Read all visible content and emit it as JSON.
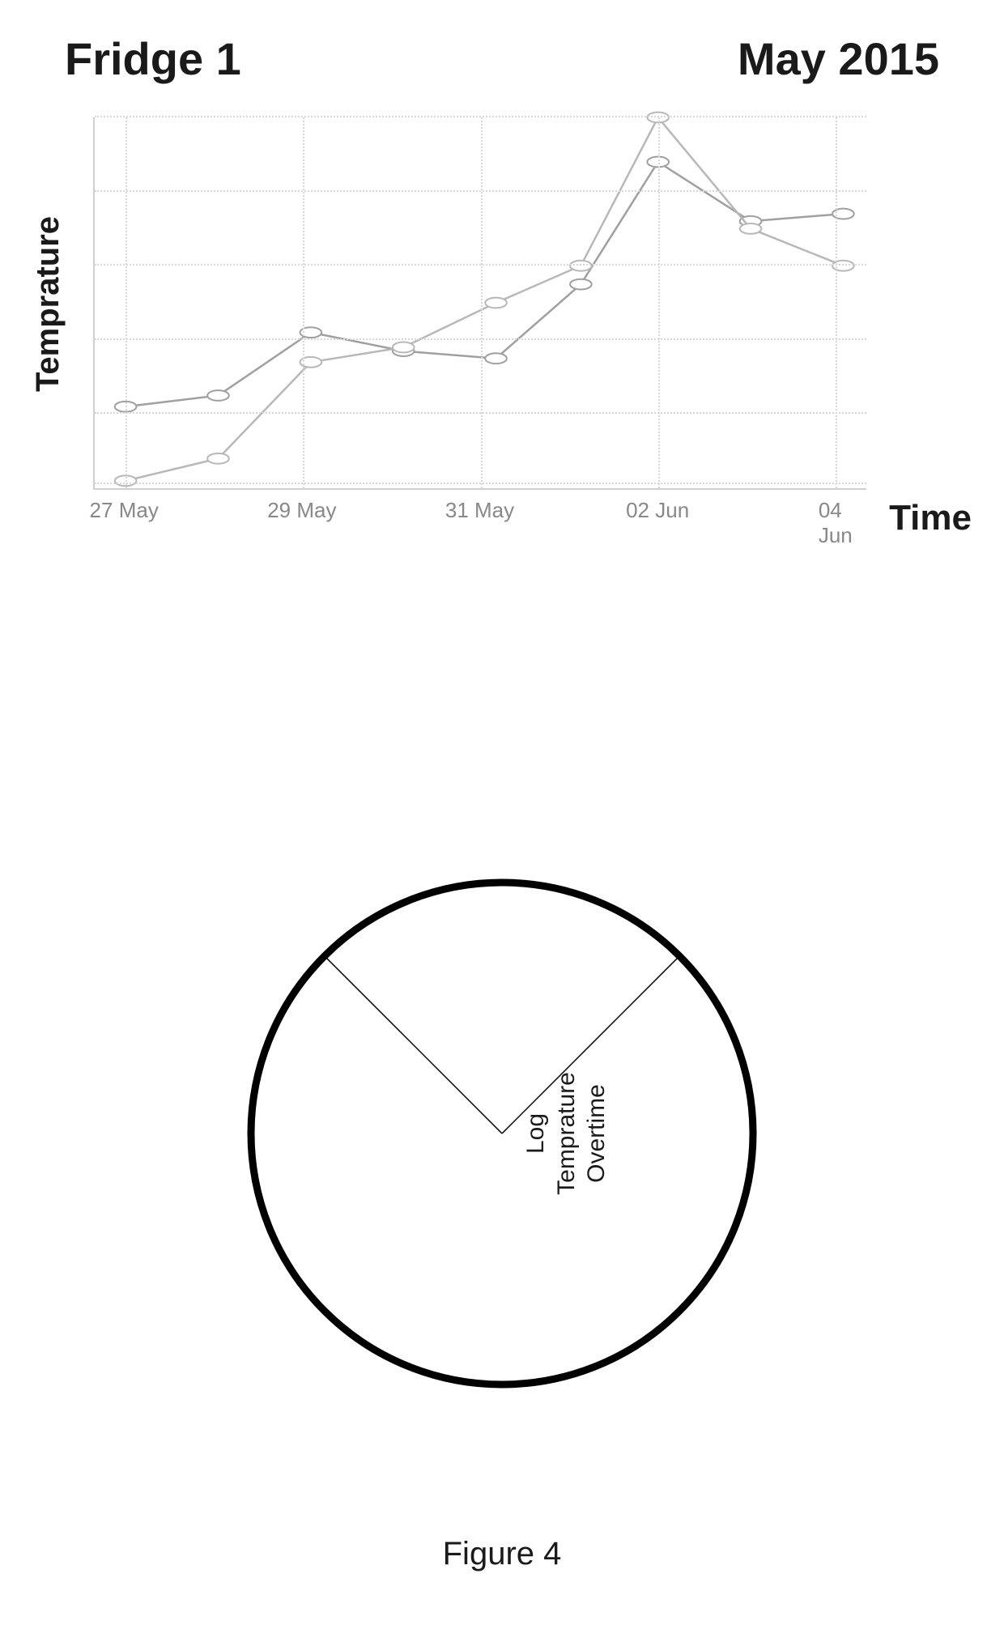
{
  "header": {
    "title": "Fridge 1",
    "date": "May 2015"
  },
  "chart": {
    "type": "line",
    "ylabel": "Temprature",
    "xlabel": "Time",
    "xticks": [
      "27 May",
      "29 May",
      "31 May",
      "02 Jun",
      "04 Jun"
    ],
    "xtick_positions_pct": [
      4,
      27,
      50,
      73,
      96
    ],
    "ylim": [
      0,
      100
    ],
    "grid_h_pct": [
      1,
      20,
      40,
      60,
      80,
      100
    ],
    "grid_v_pct": [
      4,
      27,
      50,
      73,
      96
    ],
    "grid_color": "#d8d8d8",
    "axis_color": "#d0d0d0",
    "background_color": "#ffffff",
    "series": [
      {
        "name": "series-a",
        "color": "#a0a0a0",
        "line_width": 2.5,
        "marker": "circle",
        "marker_size": 7,
        "marker_fill": "#ffffff",
        "points_x_pct": [
          4,
          16,
          28,
          40,
          52,
          63,
          73,
          85,
          97
        ],
        "points_y_val": [
          22,
          25,
          42,
          37,
          35,
          55,
          88,
          72,
          74
        ]
      },
      {
        "name": "series-b",
        "color": "#b8b8b8",
        "line_width": 2.5,
        "marker": "circle",
        "marker_size": 7,
        "marker_fill": "#ffffff",
        "points_x_pct": [
          4,
          16,
          28,
          40,
          52,
          63,
          73,
          85,
          97
        ],
        "points_y_val": [
          2,
          8,
          34,
          38,
          50,
          60,
          100,
          70,
          60
        ]
      }
    ]
  },
  "pie": {
    "type": "pie",
    "stroke_color": "#000000",
    "outer_stroke_width": 9,
    "inner_stroke_width": 1.5,
    "radius": 310,
    "slice_start_deg": 45,
    "slice_end_deg": 135,
    "label_lines": [
      "Log",
      "Temprature",
      "Overtime"
    ]
  },
  "caption": "Figure 4"
}
